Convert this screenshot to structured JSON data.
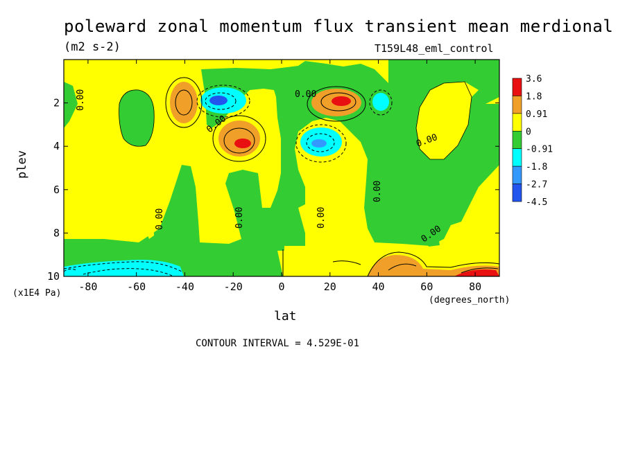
{
  "chart_data": {
    "type": "heatmap",
    "title": "poleward zonal momentum flux transient mean merdional",
    "units": "(m2 s-2)",
    "model_label": "T159L48_eml_control",
    "xlabel": "lat",
    "x_units": "(degrees_north)",
    "ylabel": "plev",
    "y_units": "(x1E4 Pa)",
    "xlim": [
      -90,
      90
    ],
    "ylim": [
      10,
      0
    ],
    "x_ticks": [
      -80,
      -60,
      -40,
      -20,
      0,
      20,
      40,
      60,
      80
    ],
    "y_ticks": [
      2,
      4,
      6,
      8,
      10
    ],
    "contour_interval_text": "CONTOUR INTERVAL = 4.529E-01",
    "contour_label_text": "0.00",
    "colorbar": {
      "levels": [
        "3.6",
        "1.8",
        "0.91",
        "0",
        "-0.91",
        "-1.8",
        "-2.7",
        "-4.5"
      ],
      "colors": [
        "#e81010",
        "#f0a028",
        "#ffff00",
        "#33cc33",
        "#00ffff",
        "#3399ff",
        "#2255ee"
      ]
    },
    "features": [
      {
        "kind": "max",
        "lat": -41,
        "plev": 2.0,
        "value": 1.5
      },
      {
        "kind": "min",
        "lat": -27,
        "plev": 2.0,
        "value": -2.5
      },
      {
        "kind": "max",
        "lat": -17,
        "plev": 3.9,
        "value": 3.0
      },
      {
        "kind": "max",
        "lat": 25,
        "plev": 2.0,
        "value": 3.0
      },
      {
        "kind": "min",
        "lat": 17,
        "plev": 3.9,
        "value": -2.0
      },
      {
        "kind": "min",
        "lat": 44,
        "plev": 2.0,
        "value": -1.0
      },
      {
        "kind": "min",
        "lat": -47,
        "plev": 9.6,
        "value": -1.5
      },
      {
        "kind": "max",
        "lat": 44,
        "plev": 9.8,
        "value": 1.5
      },
      {
        "kind": "max",
        "lat": 80,
        "plev": 9.9,
        "value": 3.0
      }
    ]
  }
}
